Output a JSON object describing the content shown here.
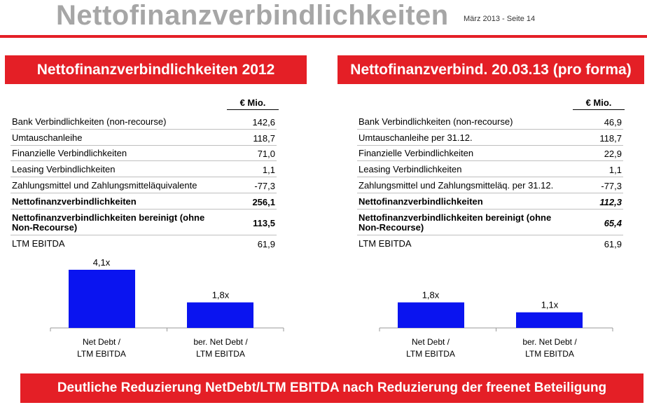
{
  "header": {
    "title": "Nettofinanzverbindlichkeiten",
    "date": "März 2013 - Seite 14"
  },
  "colors": {
    "accent": "#e41f26",
    "bar": "#0a14f0",
    "title_gray": "#a6a6a6"
  },
  "left": {
    "banner": "Nettofinanzverbindlichkeiten 2012",
    "unit": "€ Mio.",
    "rows": [
      {
        "label": "Bank Verbindlichkeiten (non-recourse)",
        "value": "142,6"
      },
      {
        "label": "Umtauschanleihe",
        "value": "118,7"
      },
      {
        "label": "Finanzielle Verbindlichkeiten",
        "value": "71,0"
      },
      {
        "label": "Leasing Verbindlichkeiten",
        "value": "1,1"
      },
      {
        "label": "Zahlungsmittel und Zahlungsmitteläquivalente",
        "value": "-77,3"
      },
      {
        "label": "Nettofinanzverbindlichkeiten",
        "value": "256,1"
      },
      {
        "label": "Nettofinanzverbindlichkeiten bereinigt (ohne Non-Recourse)",
        "value": "113,5"
      },
      {
        "label": "LTM EBITDA",
        "value": "61,9"
      }
    ]
  },
  "right": {
    "banner": "Nettofinanzverbind. 20.03.13 (pro forma)",
    "unit": "€ Mio.",
    "rows": [
      {
        "label": "Bank Verbindlichkeiten (non-recourse)",
        "value": "46,9"
      },
      {
        "label": "Umtauschanleihe per 31.12.",
        "value": "118,7"
      },
      {
        "label": "Finanzielle Verbindlichkeiten",
        "value": "22,9"
      },
      {
        "label": "Leasing Verbindlichkeiten",
        "value": "1,1"
      },
      {
        "label": "Zahlungsmittel und Zahlungsmitteläq. per 31.12.",
        "value": "-77,3"
      },
      {
        "label": "Nettofinanzverbindlichkeiten",
        "value": "112,3"
      },
      {
        "label": "Nettofinanzverbindlichkeiten bereinigt (ohne Non-Recourse)",
        "value": "65,4"
      },
      {
        "label": "LTM EBITDA",
        "value": "61,9"
      }
    ]
  },
  "chart_data": [
    {
      "type": "bar",
      "categories": [
        "Net Debt / LTM EBITDA",
        "ber. Net Debt / LTM EBITDA"
      ],
      "values": [
        4.1,
        1.8
      ],
      "value_labels": [
        "4,1x",
        "1,8x"
      ],
      "title": "",
      "xlabel": "",
      "ylabel": ""
    },
    {
      "type": "bar",
      "categories": [
        "Net Debt / LTM EBITDA",
        "ber. Net Debt / LTM EBITDA"
      ],
      "values": [
        1.8,
        1.1
      ],
      "value_labels": [
        "1,8x",
        "1,1x"
      ],
      "title": "",
      "xlabel": "",
      "ylabel": ""
    }
  ],
  "footer": {
    "banner": "Deutliche Reduzierung NetDebt/LTM EBITDA nach Reduzierung der freenet Beteiligung"
  }
}
